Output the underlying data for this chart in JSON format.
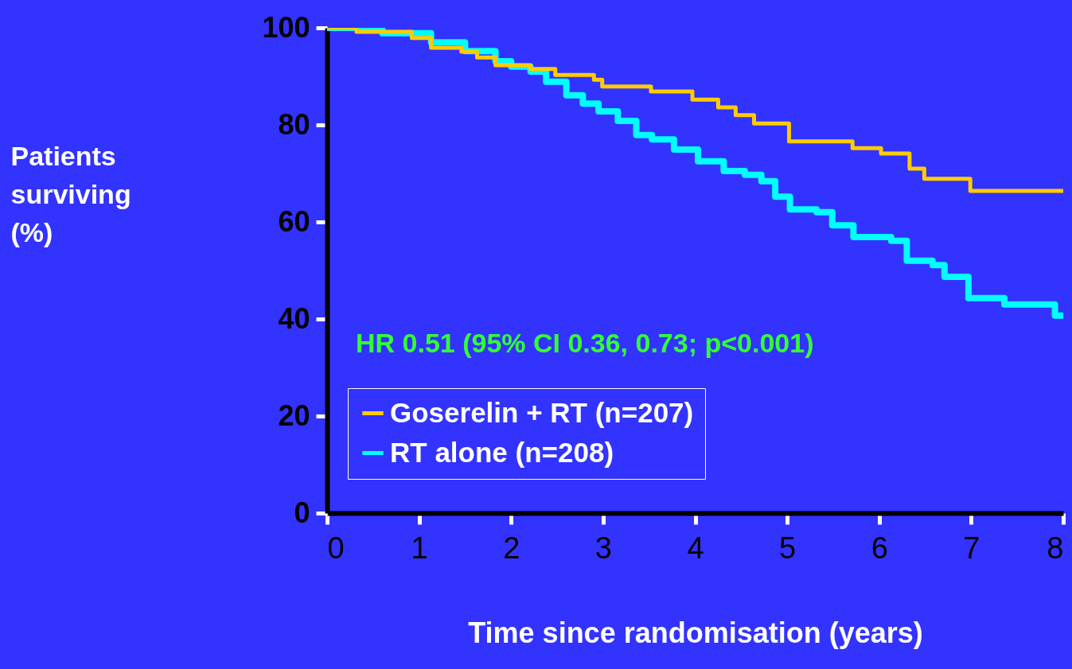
{
  "chart_data": {
    "type": "step",
    "xlabel": "Time since randomisation (years)",
    "ylabel": "Patients surviving (%)",
    "annotations": [
      "HR 0.51 (95% CI 0.36, 0.73; p<0.001)"
    ],
    "xlim": [
      0,
      8
    ],
    "xticks": [
      0,
      1,
      2,
      3,
      4,
      5,
      6,
      7,
      8
    ],
    "ylim": [
      0,
      100
    ],
    "yticks": [
      0,
      20,
      40,
      60,
      80,
      100
    ],
    "grid": false,
    "legend": "bottom left",
    "series": [
      {
        "name": "Goserelin + RT (n=207)",
        "color": "#ffcc00",
        "x": [
          0,
          0.32,
          0.92,
          1.13,
          1.46,
          1.63,
          1.83,
          2.21,
          2.48,
          2.9,
          2.99,
          3.52,
          3.97,
          4.25,
          4.44,
          4.64,
          5.02,
          5.71,
          6.02,
          6.33,
          6.49,
          6.99,
          8
        ],
        "values": [
          100,
          99.2,
          97.9,
          95.9,
          95.1,
          93.9,
          92.3,
          91.5,
          90.3,
          89.3,
          87.9,
          86.9,
          85.2,
          83.6,
          82,
          80.3,
          76.6,
          75.2,
          74.1,
          71,
          68.9,
          66.4,
          66.4
        ]
      },
      {
        "name": "RT alone (n=208)",
        "color": "#00ffff",
        "x": [
          0,
          0.6,
          1.13,
          1.5,
          1.83,
          2.0,
          2.21,
          2.38,
          2.6,
          2.78,
          2.95,
          3.16,
          3.36,
          3.53,
          3.77,
          4.03,
          4.31,
          4.54,
          4.72,
          4.87,
          5.03,
          5.32,
          5.49,
          5.72,
          6.13,
          6.3,
          6.58,
          6.71,
          6.97,
          7.36,
          7.91,
          8
        ],
        "values": [
          100,
          98.9,
          97,
          95.2,
          93.1,
          92,
          91,
          88.9,
          86.1,
          84.4,
          82.8,
          80.8,
          77.9,
          77,
          74.9,
          72.5,
          70.5,
          69.7,
          68.4,
          65.2,
          62.6,
          62,
          59.3,
          56.9,
          56.1,
          52,
          51.1,
          48.7,
          44.3,
          43,
          40.7,
          40.5
        ]
      }
    ]
  }
}
